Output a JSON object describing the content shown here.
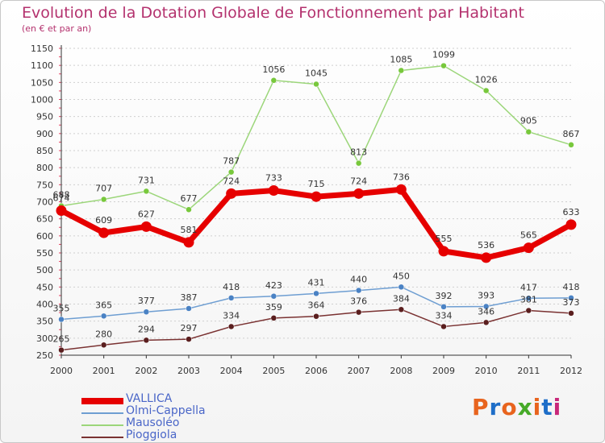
{
  "header": {
    "title": "Evolution de la Dotation Globale de Fonctionnement par Habitant",
    "subtitle": "(en € et par an)"
  },
  "logo": {
    "text": "Proxiti",
    "colors": [
      "#e8641e",
      "#1e6ec8",
      "#e8641e",
      "#46aa28",
      "#e8641e",
      "#1e6ec8",
      "#c8287a"
    ]
  },
  "chart_data": {
    "type": "line",
    "x": [
      "2000",
      "2001",
      "2002",
      "2003",
      "2004",
      "2005",
      "2006",
      "2007",
      "2008",
      "2009",
      "2010",
      "2011",
      "2012"
    ],
    "ylim": [
      250,
      1150
    ],
    "yticks": [
      250,
      300,
      350,
      400,
      450,
      500,
      550,
      600,
      650,
      700,
      750,
      800,
      850,
      900,
      950,
      1000,
      1050,
      1100,
      1150
    ],
    "grid": "horizontal dashed",
    "legend_placement": "bottom-left",
    "series": [
      {
        "name": "Mausoléo",
        "color": "#9cd67a",
        "dot": "#78c83c",
        "width": 1.5,
        "r": 3.5,
        "values": [
          688,
          707,
          731,
          677,
          787,
          1056,
          1045,
          813,
          1085,
          1099,
          1026,
          905,
          867
        ]
      },
      {
        "name": "Olmi-Cappella",
        "color": "#6e9ed2",
        "dot": "#4a82c4",
        "width": 1.5,
        "r": 3.5,
        "values": [
          355,
          365,
          377,
          387,
          418,
          423,
          431,
          440,
          450,
          392,
          393,
          417,
          418
        ]
      },
      {
        "name": "Pioggiola",
        "color": "#7a3232",
        "dot": "#5a1e1e",
        "width": 1.5,
        "r": 3.5,
        "values": [
          265,
          280,
          294,
          297,
          334,
          359,
          364,
          376,
          384,
          334,
          346,
          381,
          373
        ]
      },
      {
        "name": "VALLICA",
        "color": "#e60000",
        "dot": "#e60000",
        "width": 7,
        "r": 6.5,
        "values": [
          674,
          609,
          627,
          581,
          724,
          733,
          715,
          724,
          736,
          555,
          536,
          565,
          633
        ]
      }
    ],
    "legend": [
      "VALLICA",
      "Olmi-Cappella",
      "Mausoléo",
      "Pioggiola"
    ]
  }
}
